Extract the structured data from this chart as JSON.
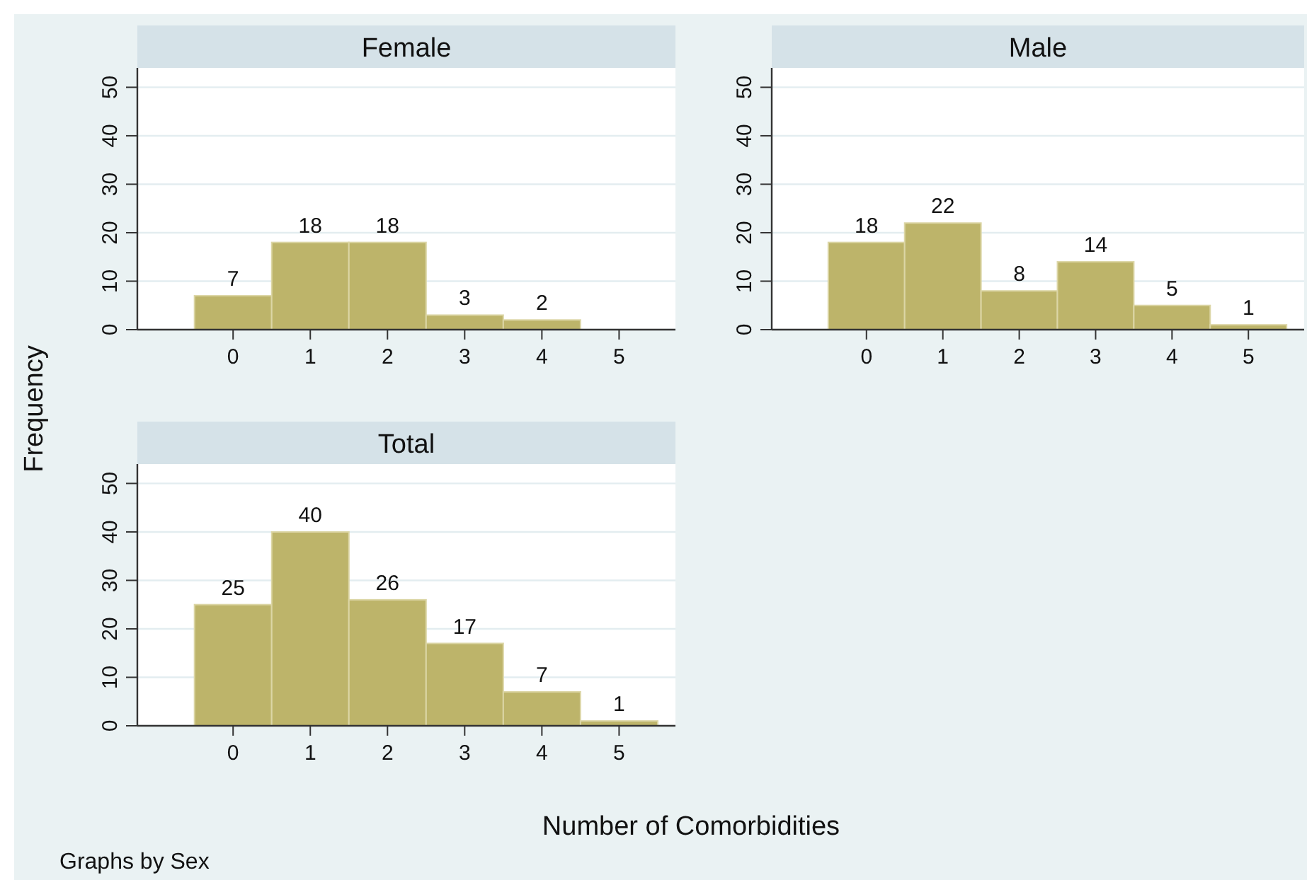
{
  "chart_data": [
    {
      "type": "histogram",
      "title": "Female",
      "ylabel": "Frequency",
      "bins": [
        -0.5,
        0.5,
        1.5,
        2.5,
        3.5,
        4.5,
        5.5
      ],
      "values": [
        7,
        18,
        18,
        3,
        2,
        0
      ],
      "value_labels": [
        "7",
        "18",
        "18",
        "3",
        "2",
        null
      ],
      "color": "#bdb46a",
      "xlim": [
        -1.24,
        5.73
      ],
      "xticks": [
        0,
        1,
        2,
        3,
        4,
        5
      ],
      "ylim": [
        0,
        54
      ],
      "yticks": [
        0,
        10,
        20,
        30,
        40,
        50
      ],
      "grid": "y"
    },
    {
      "type": "histogram",
      "title": "Male",
      "bins": [
        -0.5,
        0.5,
        1.5,
        2.5,
        3.5,
        4.5,
        5.5
      ],
      "values": [
        18,
        22,
        8,
        14,
        5,
        1
      ],
      "value_labels": [
        "18",
        "22",
        "8",
        "14",
        "5",
        "1"
      ],
      "color": "#bdb46a",
      "xlim": [
        -1.24,
        5.73
      ],
      "xticks": [
        0,
        1,
        2,
        3,
        4,
        5
      ],
      "ylim": [
        0,
        54
      ],
      "yticks": [
        0,
        10,
        20,
        30,
        40,
        50
      ],
      "grid": "y"
    },
    {
      "type": "histogram",
      "title": "Total",
      "xlabel": "Number of Comorbidities",
      "annotations": [
        "Graphs by Sex"
      ],
      "bins": [
        -0.5,
        0.5,
        1.5,
        2.5,
        3.5,
        4.5,
        5.5
      ],
      "values": [
        25,
        40,
        26,
        17,
        7,
        1
      ],
      "value_labels": [
        "25",
        "40",
        "26",
        "17",
        "7",
        "1"
      ],
      "color": "#bdb46a",
      "xlim": [
        -1.24,
        5.73
      ],
      "xticks": [
        0,
        1,
        2,
        3,
        4,
        5
      ],
      "ylim": [
        0,
        54
      ],
      "yticks": [
        0,
        10,
        20,
        30,
        40,
        50
      ],
      "grid": "y"
    }
  ]
}
